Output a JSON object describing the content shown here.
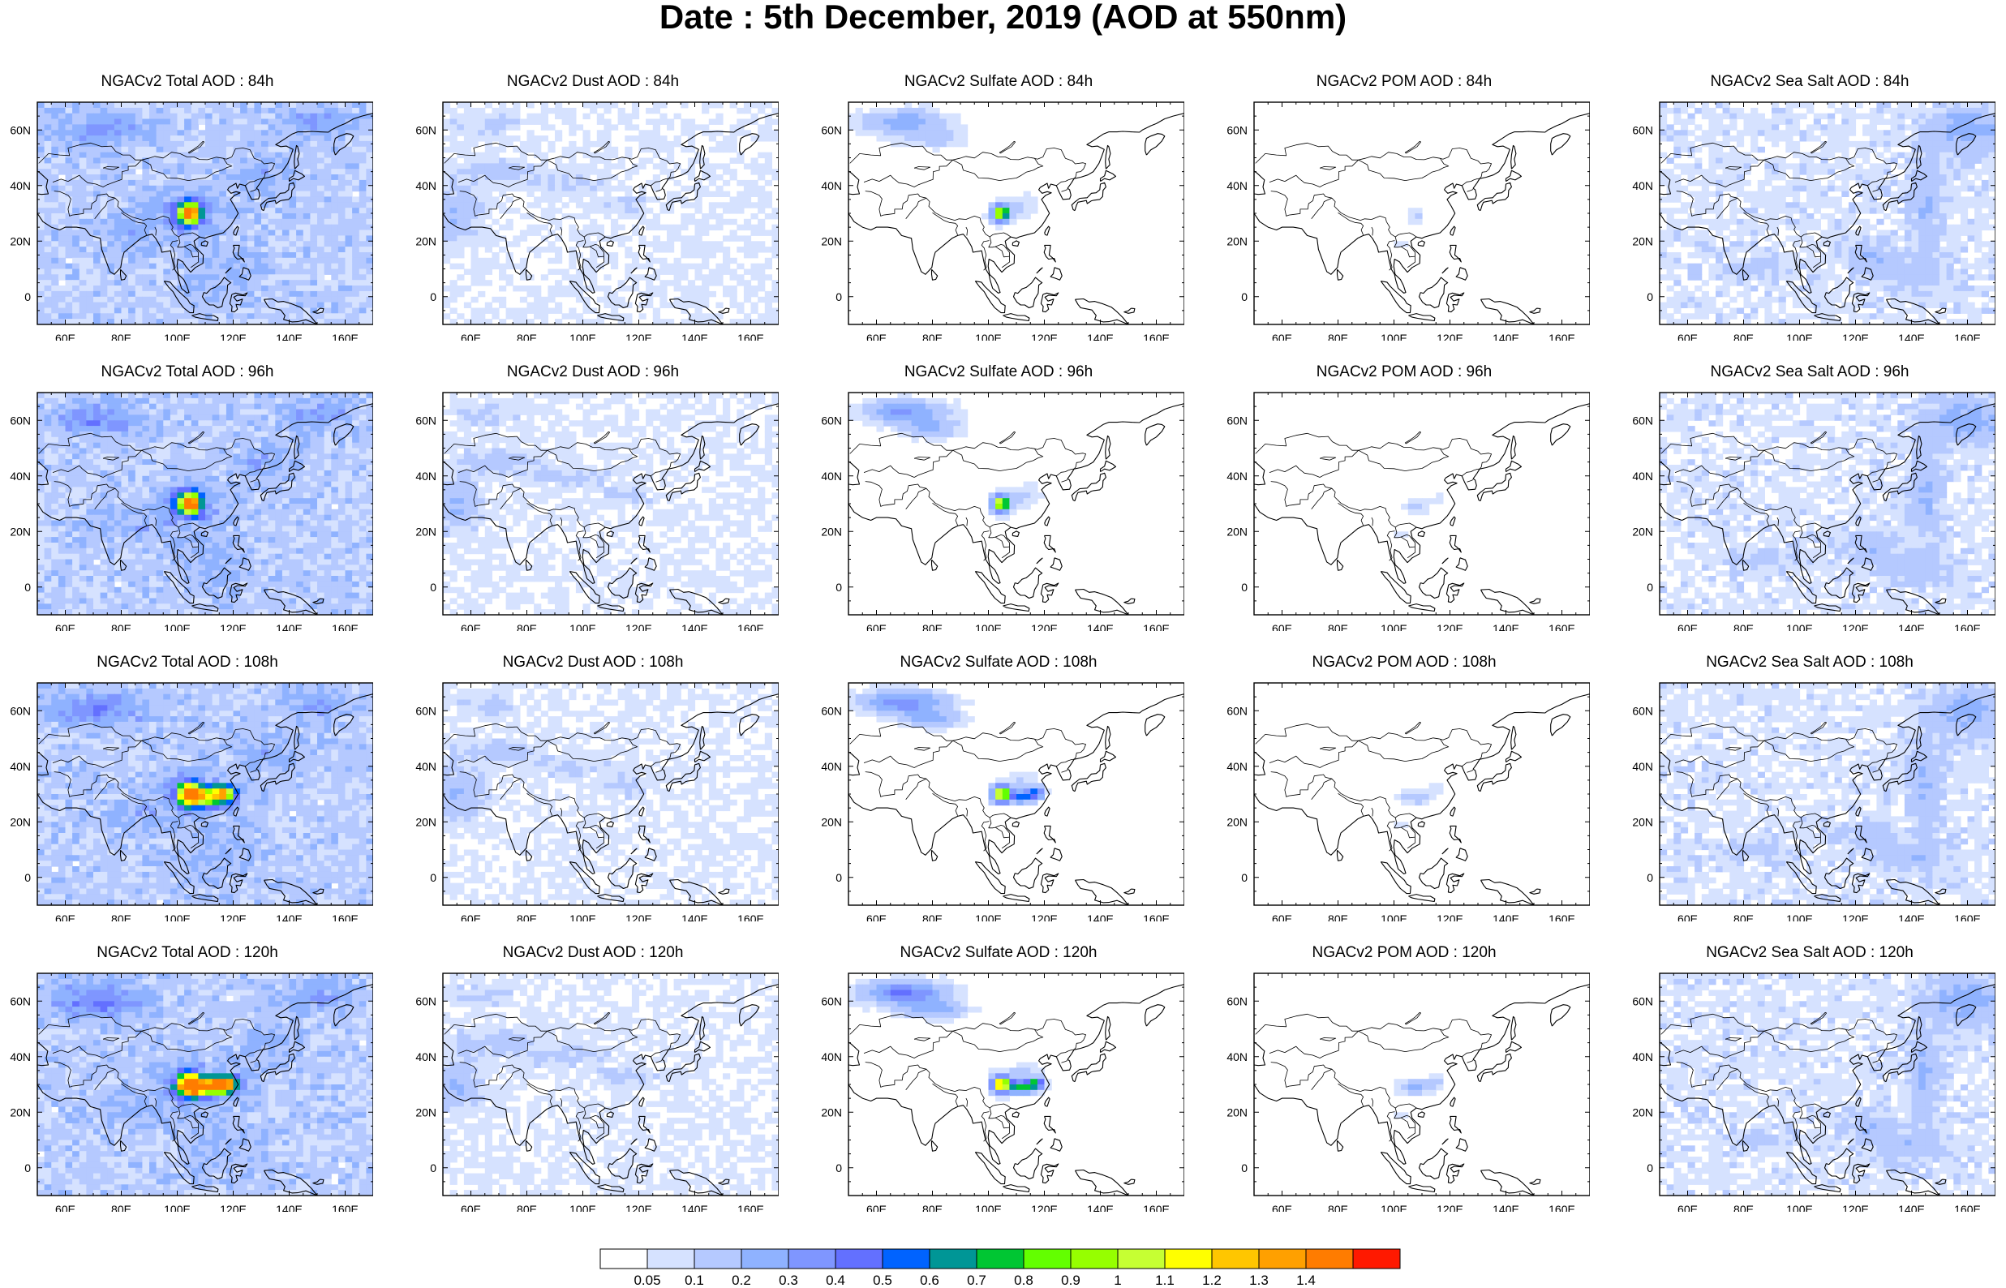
{
  "title": "Date : 5th December, 2019 (AOD at 550nm)",
  "map": {
    "lon_range": [
      50,
      170
    ],
    "lat_range": [
      -10,
      70
    ],
    "x_ticks": [
      "60E",
      "80E",
      "100E",
      "120E",
      "140E",
      "160E"
    ],
    "y_ticks": [
      "60N",
      "40N",
      "20N",
      "0"
    ]
  },
  "products": [
    {
      "id": "total",
      "name": "NGACv2 Total AOD"
    },
    {
      "id": "dust",
      "name": "NGACv2 Dust AOD"
    },
    {
      "id": "sulfate",
      "name": "NGACv2 Sulfate AOD"
    },
    {
      "id": "pom",
      "name": "NGACv2 POM AOD"
    },
    {
      "id": "seasalt",
      "name": "NGACv2 Sea Salt AOD"
    }
  ],
  "panels": [
    {
      "title": "NGACv2 Total AOD : 84h",
      "product": "total",
      "forecast_hour": "84h"
    },
    {
      "title": "NGACv2 Dust AOD : 84h",
      "product": "dust",
      "forecast_hour": "84h"
    },
    {
      "title": "NGACv2 Sulfate AOD : 84h",
      "product": "sulfate",
      "forecast_hour": "84h"
    },
    {
      "title": "NGACv2 POM AOD : 84h",
      "product": "pom",
      "forecast_hour": "84h"
    },
    {
      "title": "NGACv2 Sea Salt AOD : 84h",
      "product": "seasalt",
      "forecast_hour": "84h"
    },
    {
      "title": "NGACv2 Total AOD : 96h",
      "product": "total",
      "forecast_hour": "96h"
    },
    {
      "title": "NGACv2 Dust AOD : 96h",
      "product": "dust",
      "forecast_hour": "96h"
    },
    {
      "title": "NGACv2 Sulfate AOD : 96h",
      "product": "sulfate",
      "forecast_hour": "96h"
    },
    {
      "title": "NGACv2 POM AOD : 96h",
      "product": "pom",
      "forecast_hour": "96h"
    },
    {
      "title": "NGACv2 Sea Salt AOD : 96h",
      "product": "seasalt",
      "forecast_hour": "96h"
    },
    {
      "title": "NGACv2 Total AOD : 108h",
      "product": "total",
      "forecast_hour": "108h"
    },
    {
      "title": "NGACv2 Dust AOD : 108h",
      "product": "dust",
      "forecast_hour": "108h"
    },
    {
      "title": "NGACv2 Sulfate AOD : 108h",
      "product": "sulfate",
      "forecast_hour": "108h"
    },
    {
      "title": "NGACv2 POM AOD : 108h",
      "product": "pom",
      "forecast_hour": "108h"
    },
    {
      "title": "NGACv2 Sea Salt AOD : 108h",
      "product": "seasalt",
      "forecast_hour": "108h"
    },
    {
      "title": "NGACv2 Total AOD : 120h",
      "product": "total",
      "forecast_hour": "120h"
    },
    {
      "title": "NGACv2 Dust AOD : 120h",
      "product": "dust",
      "forecast_hour": "120h"
    },
    {
      "title": "NGACv2 Sulfate AOD : 120h",
      "product": "sulfate",
      "forecast_hour": "120h"
    },
    {
      "title": "NGACv2 POM AOD : 120h",
      "product": "pom",
      "forecast_hour": "120h"
    },
    {
      "title": "NGACv2 Sea Salt  AOD : 120h",
      "product": "seasalt",
      "forecast_hour": "120h"
    }
  ],
  "colorbar": {
    "levels": [
      "0.05",
      "0.1",
      "0.2",
      "0.3",
      "0.4",
      "0.5",
      "0.6",
      "0.7",
      "0.8",
      "0.9",
      "1",
      "1.1",
      "1.2",
      "1.3",
      "1.4"
    ],
    "colors": [
      "#ffffff",
      "#d6e2ff",
      "#b5c9ff",
      "#8fb2ff",
      "#7f96ff",
      "#6370ff",
      "#0063ff",
      "#009696",
      "#00c633",
      "#63ff00",
      "#96ff00",
      "#c6ff33",
      "#ffff00",
      "#ffc600",
      "#ffa000",
      "#ff7c00",
      "#ff1900"
    ]
  }
}
